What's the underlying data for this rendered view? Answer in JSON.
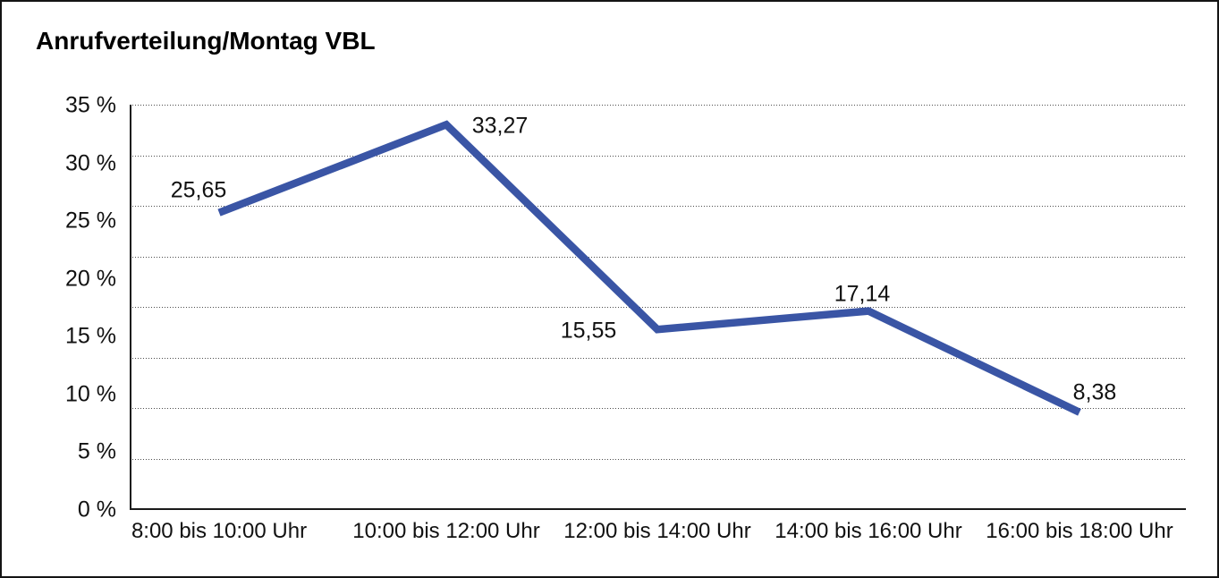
{
  "chart_data": {
    "type": "line",
    "title": "Anrufverteilung/Montag VBL",
    "categories": [
      "8:00 bis 10:00 Uhr",
      "10:00 bis 12:00 Uhr",
      "12:00 bis 14:00 Uhr",
      "14:00 bis 16:00 Uhr",
      "16:00 bis 18:00 Uhr"
    ],
    "series": [
      {
        "name": "Anrufverteilung",
        "values": [
          25.65,
          33.27,
          15.55,
          17.14,
          8.38
        ],
        "value_labels": [
          "25,65",
          "33,27",
          "15,55",
          "17,14",
          "8,38"
        ]
      }
    ],
    "xlabel": "",
    "ylabel": "",
    "ylim": [
      0,
      35
    ],
    "y_tick_labels": [
      "35 %",
      "30 %",
      "25 %",
      "20 %",
      "15 %",
      "10 %",
      "5 %",
      "0 %"
    ],
    "y_tick_values": [
      35,
      30,
      25,
      20,
      15,
      10,
      5,
      0
    ],
    "grid": "horizontal-dotted",
    "grid_divisions": 8,
    "legend": "none",
    "colors": {
      "line": "#3A55A5",
      "axis": "#1a1a1a",
      "grid_dots": "#4d4d4d",
      "text": "#111111",
      "background": "#ffffff"
    }
  }
}
